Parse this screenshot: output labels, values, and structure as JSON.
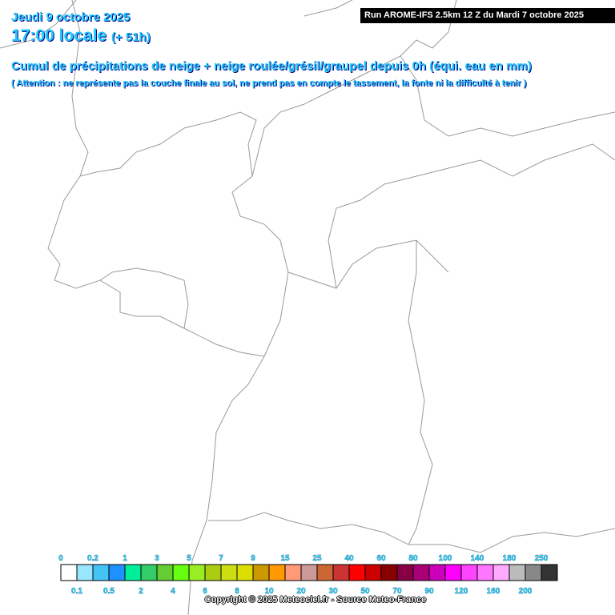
{
  "header": {
    "date": "Jeudi 9 octobre 2025",
    "time": "17:00 locale",
    "lead": "(+ 51h)",
    "run": "Run AROME-IFS 2.5km 12 Z du Mardi 7 octobre 2025",
    "title": "Cumul de précipitations de neige + neige roulée/grésil/graupel depuis 0h (équi. eau en mm)",
    "note": "( Attention : ne représente pas la couche finale au sol, ne prend pas en compte le tassement, la fonte ni la difficulté à tenir )"
  },
  "legend": [
    {
      "label": "0",
      "color": "#ffffff"
    },
    {
      "label": "0.1",
      "color": "#99e6ff"
    },
    {
      "label": "0.2",
      "color": "#44c4f4"
    },
    {
      "label": "0.5",
      "color": "#1e90ff"
    },
    {
      "label": "1",
      "color": "#00ee99"
    },
    {
      "label": "2",
      "color": "#33cc66"
    },
    {
      "label": "3",
      "color": "#66cc33"
    },
    {
      "label": "4",
      "color": "#66ff11"
    },
    {
      "label": "5",
      "color": "#99ee22"
    },
    {
      "label": "6",
      "color": "#aacc11"
    },
    {
      "label": "7",
      "color": "#ccdd11"
    },
    {
      "label": "8",
      "color": "#dddd00"
    },
    {
      "label": "9",
      "color": "#cc9900"
    },
    {
      "label": "10",
      "color": "#ff9900"
    },
    {
      "label": "15",
      "color": "#ff9977"
    },
    {
      "label": "20",
      "color": "#cc9999"
    },
    {
      "label": "25",
      "color": "#cc6633"
    },
    {
      "label": "30",
      "color": "#cc3333"
    },
    {
      "label": "40",
      "color": "#ff0000"
    },
    {
      "label": "50",
      "color": "#cc0000"
    },
    {
      "label": "60",
      "color": "#880000"
    },
    {
      "label": "70",
      "color": "#880044"
    },
    {
      "label": "80",
      "color": "#aa0077"
    },
    {
      "label": "90",
      "color": "#cc00bb"
    },
    {
      "label": "100",
      "color": "#ff00ff"
    },
    {
      "label": "120",
      "color": "#ff44ff"
    },
    {
      "label": "140",
      "color": "#ff77ff"
    },
    {
      "label": "160",
      "color": "#ffaaff"
    },
    {
      "label": "180",
      "color": "#bbbbbb"
    },
    {
      "label": "200",
      "color": "#888888"
    },
    {
      "label": "250",
      "color": "#333333"
    }
  ],
  "copyright": "Copyright © 2025 Meteociel.fr - Source Meteo-France"
}
